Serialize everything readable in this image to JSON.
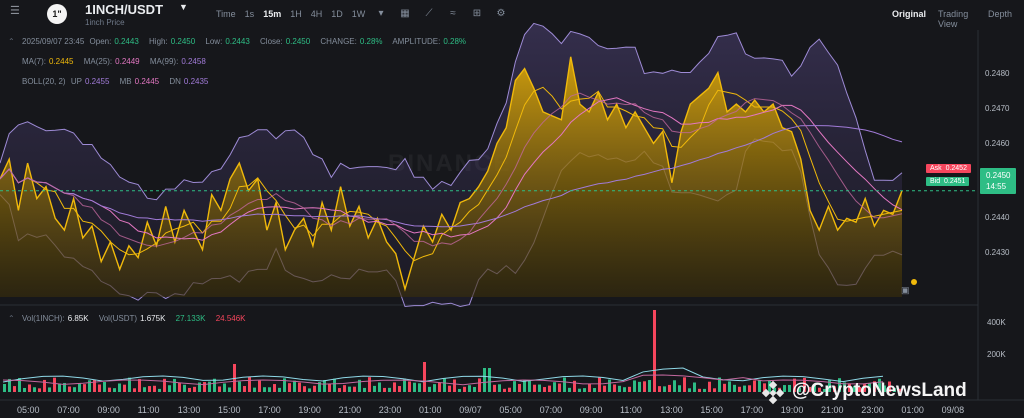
{
  "header": {
    "pair": "1INCH/USDT",
    "subtitle": "1inch Price",
    "logo_text": "1\"",
    "intervals": [
      "Time",
      "1s",
      "15m",
      "1H",
      "4H",
      "1D",
      "1W"
    ],
    "active_interval": "15m",
    "view_tabs": [
      "Original",
      "Trading View",
      "Depth"
    ],
    "active_view": "Original"
  },
  "ohlc": {
    "date": "2025/09/07 23:45",
    "open_label": "Open:",
    "open": "0.2443",
    "high_label": "High:",
    "high": "0.2450",
    "low_label": "Low:",
    "low": "0.2443",
    "close_label": "Close:",
    "close": "0.2450",
    "change_label": "CHANGE:",
    "change": "0.28%",
    "amp_label": "AMPLITUDE:",
    "amp": "0.28%"
  },
  "ma": {
    "ma7_label": "MA(7):",
    "ma7": "0.2445",
    "ma25_label": "MA(25):",
    "ma25": "0.2449",
    "ma99_label": "MA(99):",
    "ma99": "0.2458"
  },
  "boll": {
    "label": "BOLL(20, 2)",
    "up_label": "UP",
    "up": "0.2455",
    "mb_label": "MB",
    "mb": "0.2445",
    "dn_label": "DN",
    "dn": "0.2435"
  },
  "volume": {
    "vol1_label": "Vol(1INCH):",
    "vol1": "6.85K",
    "vol2_label": "Vol(USDT)",
    "vol2": "1.675K",
    "vol_ma1": "27.133K",
    "vol_ma2": "24.546K",
    "ticks": [
      "400K",
      "200K"
    ]
  },
  "y_axis": [
    "0.2480",
    "0.2470",
    "0.2460",
    "0.2440",
    "0.2430"
  ],
  "price_tags": {
    "ask_label": "Ask",
    "ask": "0.2452",
    "bid_label": "Bid",
    "bid": "0.2451",
    "last": "0.2450",
    "countdown": "14:55"
  },
  "x_axis": [
    "05:00",
    "07:00",
    "09:00",
    "11:00",
    "13:00",
    "15:00",
    "17:00",
    "19:00",
    "21:00",
    "23:00",
    "01:00",
    "09/07",
    "05:00",
    "07:00",
    "09:00",
    "11:00",
    "13:00",
    "15:00",
    "17:00",
    "19:00",
    "21:00",
    "23:00",
    "01:00",
    "09/08"
  ],
  "watermark": "@CryptoNewsLand",
  "bg_watermark": "BINANCE",
  "colors": {
    "up": "#2ebd85",
    "down": "#f6465d",
    "ma7": "#f0b90b",
    "ma25": "#e377c2",
    "ma99": "#a17bd8",
    "boll": "#9e8bd6"
  },
  "chart_data": {
    "type": "area",
    "title": "1INCH/USDT",
    "x_labels": [
      "05:00",
      "07:00",
      "09:00",
      "11:00",
      "13:00",
      "15:00",
      "17:00",
      "19:00",
      "21:00",
      "23:00",
      "01:00",
      "09/07",
      "05:00",
      "07:00",
      "09:00",
      "11:00",
      "13:00",
      "15:00",
      "17:00",
      "19:00",
      "21:00",
      "23:00",
      "01:00",
      "09/08"
    ],
    "ylim": [
      0.2423,
      0.2487
    ],
    "series": [
      {
        "values": [
          0.2453,
          0.2458,
          0.2445,
          0.2457,
          0.2448,
          0.2451,
          0.2443,
          0.244,
          0.2448,
          0.2438,
          0.2441,
          0.2432,
          0.2437,
          0.243,
          0.2436,
          0.2433,
          0.2442,
          0.2436,
          0.2446,
          0.2437,
          0.2445,
          0.244,
          0.2435,
          0.2449,
          0.2445,
          0.2453,
          0.2457,
          0.245,
          0.2453,
          0.244,
          0.2447,
          0.2435,
          0.244,
          0.2443,
          0.2436,
          0.2447,
          0.244,
          0.2451,
          0.2441,
          0.2446,
          0.2438,
          0.2443,
          0.2437,
          0.2434,
          0.2425,
          0.2433,
          0.2441,
          0.2437,
          0.2444,
          0.244,
          0.2447,
          0.2448,
          0.2451,
          0.2455,
          0.2462,
          0.2466,
          0.2478,
          0.2481,
          0.2476,
          0.247,
          0.2469,
          0.2468,
          0.2484,
          0.2472,
          0.247,
          0.2475,
          0.2468,
          0.2472,
          0.2466,
          0.247,
          0.2466,
          0.2462,
          0.2465,
          0.2452,
          0.2465,
          0.2472,
          0.2474,
          0.2476,
          0.248,
          0.247,
          0.2472,
          0.247,
          0.2473,
          0.247,
          0.2472,
          0.2466,
          0.2465,
          0.2458,
          0.2445,
          0.244,
          0.2446,
          0.244,
          0.2443,
          0.2442,
          0.2448,
          0.2441,
          0.2445,
          0.2444,
          0.245
        ]
      }
    ]
  }
}
